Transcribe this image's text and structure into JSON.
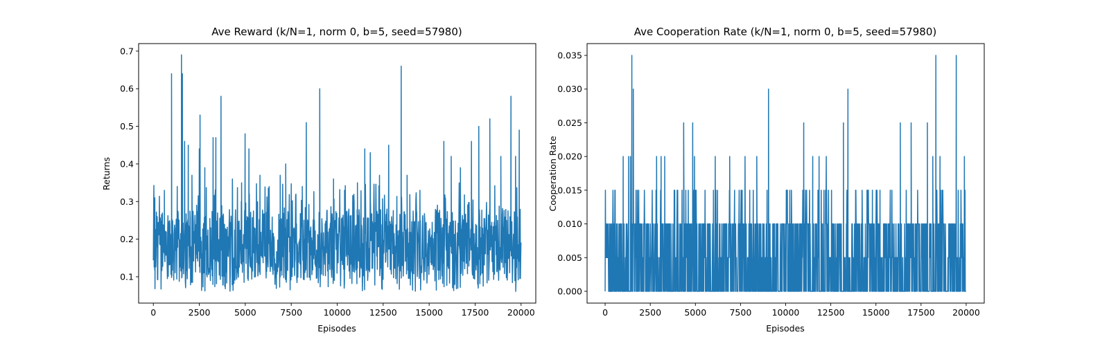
{
  "figure": {
    "background": "#ffffff"
  },
  "chart_data": [
    {
      "type": "line",
      "title": "Ave Reward (k/N=1, norm 0, b=5, seed=57980)",
      "xlabel": "Episodes",
      "ylabel": "Returns",
      "xlim": [
        -800,
        20800
      ],
      "ylim": [
        0.03,
        0.72
      ],
      "xticks": [
        0,
        2500,
        5000,
        7500,
        10000,
        12500,
        15000,
        17500,
        20000
      ],
      "xtick_labels": [
        "0",
        "2500",
        "5000",
        "7500",
        "10000",
        "12500",
        "15000",
        "17500",
        "20000"
      ],
      "yticks": [
        0.1,
        0.2,
        0.3,
        0.4,
        0.5,
        0.6,
        0.7
      ],
      "ytick_labels": [
        "0.1",
        "0.2",
        "0.3",
        "0.4",
        "0.5",
        "0.6",
        "0.7"
      ],
      "grid": false,
      "legend": false,
      "color": "#1f77b4",
      "series": [
        {
          "description_free": true,
          "noise": {
            "x_start": 0,
            "x_end": 20000,
            "typical_low": 0.09,
            "typical_high": 0.28,
            "extreme_low": 0.06,
            "extreme_high": 0.35
          },
          "spikes": [
            {
              "x": 20,
              "y": 0.3
            },
            {
              "x": 80,
              "y": 0.31
            },
            {
              "x": 600,
              "y": 0.33
            },
            {
              "x": 990,
              "y": 0.64
            },
            {
              "x": 1300,
              "y": 0.34
            },
            {
              "x": 1530,
              "y": 0.69
            },
            {
              "x": 1580,
              "y": 0.64
            },
            {
              "x": 1700,
              "y": 0.46
            },
            {
              "x": 1900,
              "y": 0.45
            },
            {
              "x": 2100,
              "y": 0.37
            },
            {
              "x": 2500,
              "y": 0.44
            },
            {
              "x": 2540,
              "y": 0.53
            },
            {
              "x": 2800,
              "y": 0.39
            },
            {
              "x": 3250,
              "y": 0.47
            },
            {
              "x": 3400,
              "y": 0.47
            },
            {
              "x": 3680,
              "y": 0.58
            },
            {
              "x": 4300,
              "y": 0.36
            },
            {
              "x": 4800,
              "y": 0.35
            },
            {
              "x": 4990,
              "y": 0.48
            },
            {
              "x": 5200,
              "y": 0.44
            },
            {
              "x": 5800,
              "y": 0.37
            },
            {
              "x": 6300,
              "y": 0.34
            },
            {
              "x": 6900,
              "y": 0.37
            },
            {
              "x": 7200,
              "y": 0.4
            },
            {
              "x": 8100,
              "y": 0.34
            },
            {
              "x": 8320,
              "y": 0.51
            },
            {
              "x": 9050,
              "y": 0.6
            },
            {
              "x": 9800,
              "y": 0.36
            },
            {
              "x": 10400,
              "y": 0.33
            },
            {
              "x": 11100,
              "y": 0.35
            },
            {
              "x": 11500,
              "y": 0.44
            },
            {
              "x": 11800,
              "y": 0.43
            },
            {
              "x": 12300,
              "y": 0.37
            },
            {
              "x": 12800,
              "y": 0.45
            },
            {
              "x": 13480,
              "y": 0.66
            },
            {
              "x": 13800,
              "y": 0.37
            },
            {
              "x": 14500,
              "y": 0.33
            },
            {
              "x": 15800,
              "y": 0.46
            },
            {
              "x": 16200,
              "y": 0.42
            },
            {
              "x": 16700,
              "y": 0.39
            },
            {
              "x": 17300,
              "y": 0.46
            },
            {
              "x": 17700,
              "y": 0.5
            },
            {
              "x": 18300,
              "y": 0.52
            },
            {
              "x": 18900,
              "y": 0.42
            },
            {
              "x": 19450,
              "y": 0.58
            },
            {
              "x": 19700,
              "y": 0.42
            },
            {
              "x": 19900,
              "y": 0.49
            }
          ]
        }
      ]
    },
    {
      "type": "line",
      "title": "Ave Cooperation Rate (k/N=1, norm 0, b=5, seed=57980)",
      "xlabel": "Episodes",
      "ylabel": "Cooperation Rate",
      "xlim": [
        -1000,
        21000
      ],
      "ylim": [
        -0.00175,
        0.03675
      ],
      "xticks": [
        0,
        2500,
        5000,
        7500,
        10000,
        12500,
        15000,
        17500,
        20000
      ],
      "xtick_labels": [
        "0",
        "2500",
        "5000",
        "7500",
        "10000",
        "12500",
        "15000",
        "17500",
        "20000"
      ],
      "yticks": [
        0.0,
        0.005,
        0.01,
        0.015,
        0.02,
        0.025,
        0.03,
        0.035
      ],
      "ytick_labels": [
        "0.000",
        "0.005",
        "0.010",
        "0.015",
        "0.020",
        "0.025",
        "0.030",
        "0.035"
      ],
      "grid": false,
      "legend": false,
      "color": "#1f77b4",
      "series": [
        {
          "noise": {
            "x_start": 0,
            "x_end": 20000,
            "band_low": 0.0,
            "band_high": 0.01,
            "frequent_high": 0.015
          },
          "spikes": [
            {
              "x": 1480,
              "y": 0.035
            },
            {
              "x": 1560,
              "y": 0.03
            },
            {
              "x": 1000,
              "y": 0.02
            },
            {
              "x": 1300,
              "y": 0.02
            },
            {
              "x": 1400,
              "y": 0.02
            },
            {
              "x": 2850,
              "y": 0.02
            },
            {
              "x": 3100,
              "y": 0.02
            },
            {
              "x": 3300,
              "y": 0.02
            },
            {
              "x": 4350,
              "y": 0.025
            },
            {
              "x": 4850,
              "y": 0.025
            },
            {
              "x": 4950,
              "y": 0.02
            },
            {
              "x": 6100,
              "y": 0.02
            },
            {
              "x": 6900,
              "y": 0.02
            },
            {
              "x": 7750,
              "y": 0.02
            },
            {
              "x": 8400,
              "y": 0.02
            },
            {
              "x": 9050,
              "y": 0.03
            },
            {
              "x": 11000,
              "y": 0.025
            },
            {
              "x": 11500,
              "y": 0.02
            },
            {
              "x": 11850,
              "y": 0.02
            },
            {
              "x": 12250,
              "y": 0.02
            },
            {
              "x": 13200,
              "y": 0.025
            },
            {
              "x": 13450,
              "y": 0.03
            },
            {
              "x": 16350,
              "y": 0.025
            },
            {
              "x": 16950,
              "y": 0.025
            },
            {
              "x": 17850,
              "y": 0.025
            },
            {
              "x": 18150,
              "y": 0.02
            },
            {
              "x": 18320,
              "y": 0.035
            },
            {
              "x": 18550,
              "y": 0.02
            },
            {
              "x": 19450,
              "y": 0.035
            },
            {
              "x": 19900,
              "y": 0.02
            }
          ]
        }
      ]
    }
  ]
}
